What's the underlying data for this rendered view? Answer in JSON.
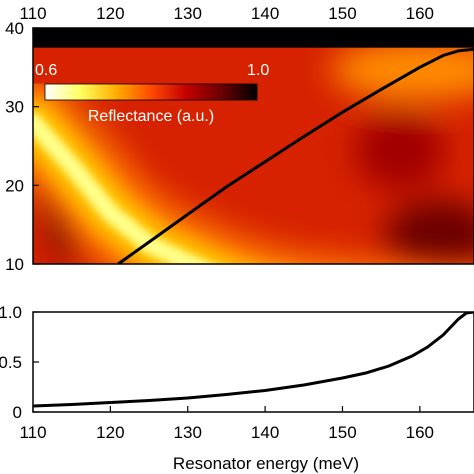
{
  "chart_data": [
    {
      "type": "heatmap",
      "title": "",
      "xlabel": "",
      "ylabel": "",
      "xlim": [
        110,
        167
      ],
      "ylim": [
        10,
        40
      ],
      "x_ticks": [
        110,
        120,
        130,
        140,
        150,
        160
      ],
      "y_ticks": [
        10,
        20,
        30,
        40
      ],
      "colorbar": {
        "label": "Reflectance (a.u.)",
        "min": 0.6,
        "max": 1.0,
        "min_label": "0.6",
        "max_label": "1.0",
        "colors": [
          "#ffffff",
          "#ffff60",
          "#ffb000",
          "#ff4a00",
          "#c40000",
          "#6a0000",
          "#000000"
        ]
      },
      "band": {
        "y_from": 37.5,
        "y_to": 40,
        "color": "#000000"
      },
      "curve": {
        "x": [
          121,
          125,
          130,
          135,
          140,
          145,
          150,
          155,
          160,
          163,
          165,
          167
        ],
        "y": [
          10,
          12.8,
          16.3,
          19.8,
          23.0,
          26.2,
          29.3,
          32.2,
          35.0,
          36.5,
          37.1,
          37.3
        ]
      },
      "ridge": {
        "x": [
          110,
          115,
          120,
          125,
          130,
          135,
          140,
          145,
          150,
          155,
          160,
          165,
          167
        ],
        "y": [
          28,
          22.5,
          16.5,
          12.5,
          10.2,
          8,
          6.5,
          5.5,
          5,
          4.5,
          4,
          3.5,
          3.5
        ]
      }
    },
    {
      "type": "line",
      "title": "",
      "xlabel": "Resonator energy (meV)",
      "ylabel": "",
      "xlim": [
        110,
        167
      ],
      "ylim": [
        0,
        1.0
      ],
      "x_ticks": [
        110,
        120,
        130,
        140,
        150,
        160
      ],
      "y_ticks": [
        0,
        0.5,
        1.0
      ],
      "y_tick_labels": [
        "0",
        "0.5",
        "1.0"
      ],
      "series": [
        {
          "x": [
            110,
            115,
            120,
            125,
            130,
            135,
            140,
            145,
            150,
            153,
            156,
            159,
            161,
            163,
            164,
            165,
            166,
            167
          ],
          "y": [
            0.06,
            0.075,
            0.095,
            0.115,
            0.14,
            0.175,
            0.215,
            0.27,
            0.34,
            0.39,
            0.46,
            0.56,
            0.65,
            0.77,
            0.85,
            0.93,
            0.99,
            1.0
          ]
        }
      ]
    }
  ]
}
